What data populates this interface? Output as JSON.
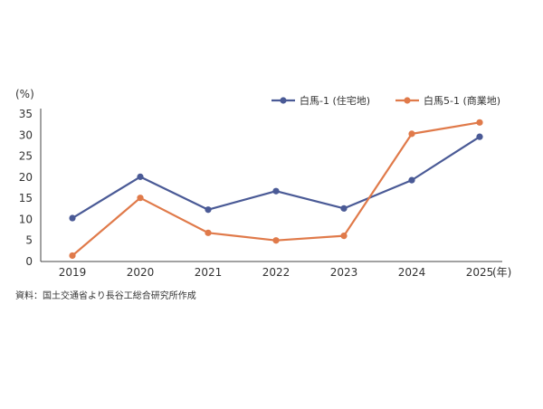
{
  "chart_data": {
    "type": "line",
    "x": [
      "2019",
      "2020",
      "2021",
      "2022",
      "2023",
      "2024",
      "2025"
    ],
    "x_unit": "(年)",
    "y_unit": "(%)",
    "ylim": [
      0,
      35
    ],
    "yticks": [
      0,
      5,
      10,
      15,
      20,
      25,
      30,
      35
    ],
    "grid": false,
    "legend_position": "top-right",
    "series": [
      {
        "name": "白馬-1 (住宅地)",
        "color": "#4a5a96",
        "values": [
          10.3,
          20.1,
          12.3,
          16.7,
          12.6,
          19.3,
          29.6
        ]
      },
      {
        "name": "白馬5-1 (商業地)",
        "color": "#e07a4a",
        "values": [
          1.4,
          15.1,
          6.8,
          5.0,
          6.1,
          30.3,
          33.0
        ]
      }
    ],
    "source": "資料：国土交通省より長谷工総合研究所作成"
  }
}
